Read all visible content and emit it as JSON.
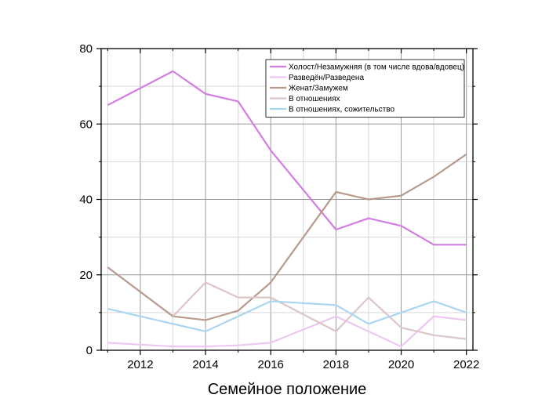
{
  "chart_data": {
    "type": "line",
    "title": "",
    "xlabel": "Семейное положение",
    "ylabel": "",
    "xlim": [
      2010.8,
      2022.2
    ],
    "ylim": [
      0,
      80
    ],
    "x_ticks": [
      2012,
      2014,
      2016,
      2018,
      2020,
      2022
    ],
    "y_ticks": [
      0,
      20,
      40,
      60,
      80
    ],
    "grid": true,
    "legend_position": "top-right",
    "x": [
      2011,
      2013,
      2014,
      2015,
      2016,
      2018,
      2019,
      2020,
      2021,
      2022
    ],
    "series": [
      {
        "name": "Холост/Незамужняя (в том числе вдова/вдовец)",
        "color": "#d17ee0",
        "values": [
          65,
          74,
          68,
          66,
          53,
          32,
          35,
          33,
          28,
          28
        ]
      },
      {
        "name": "Разведён/Разведена",
        "color": "#ecc8f0",
        "values": [
          2,
          1,
          1,
          1.3,
          2,
          9,
          5,
          1,
          9,
          8
        ]
      },
      {
        "name": "Женат/Замужем",
        "color": "#b89a8c",
        "values": [
          22,
          9,
          8,
          10.5,
          18,
          42,
          40,
          41,
          46,
          52
        ]
      },
      {
        "name": "В отношениях",
        "color": "#dcc5c7",
        "values": [
          null,
          9,
          18,
          14,
          14,
          5,
          14,
          6,
          4,
          3
        ]
      },
      {
        "name": "В отношениях, сожительство",
        "color": "#a9d6f0",
        "values": [
          11,
          7,
          5,
          9,
          13,
          12,
          7,
          10,
          13,
          10
        ]
      }
    ]
  }
}
